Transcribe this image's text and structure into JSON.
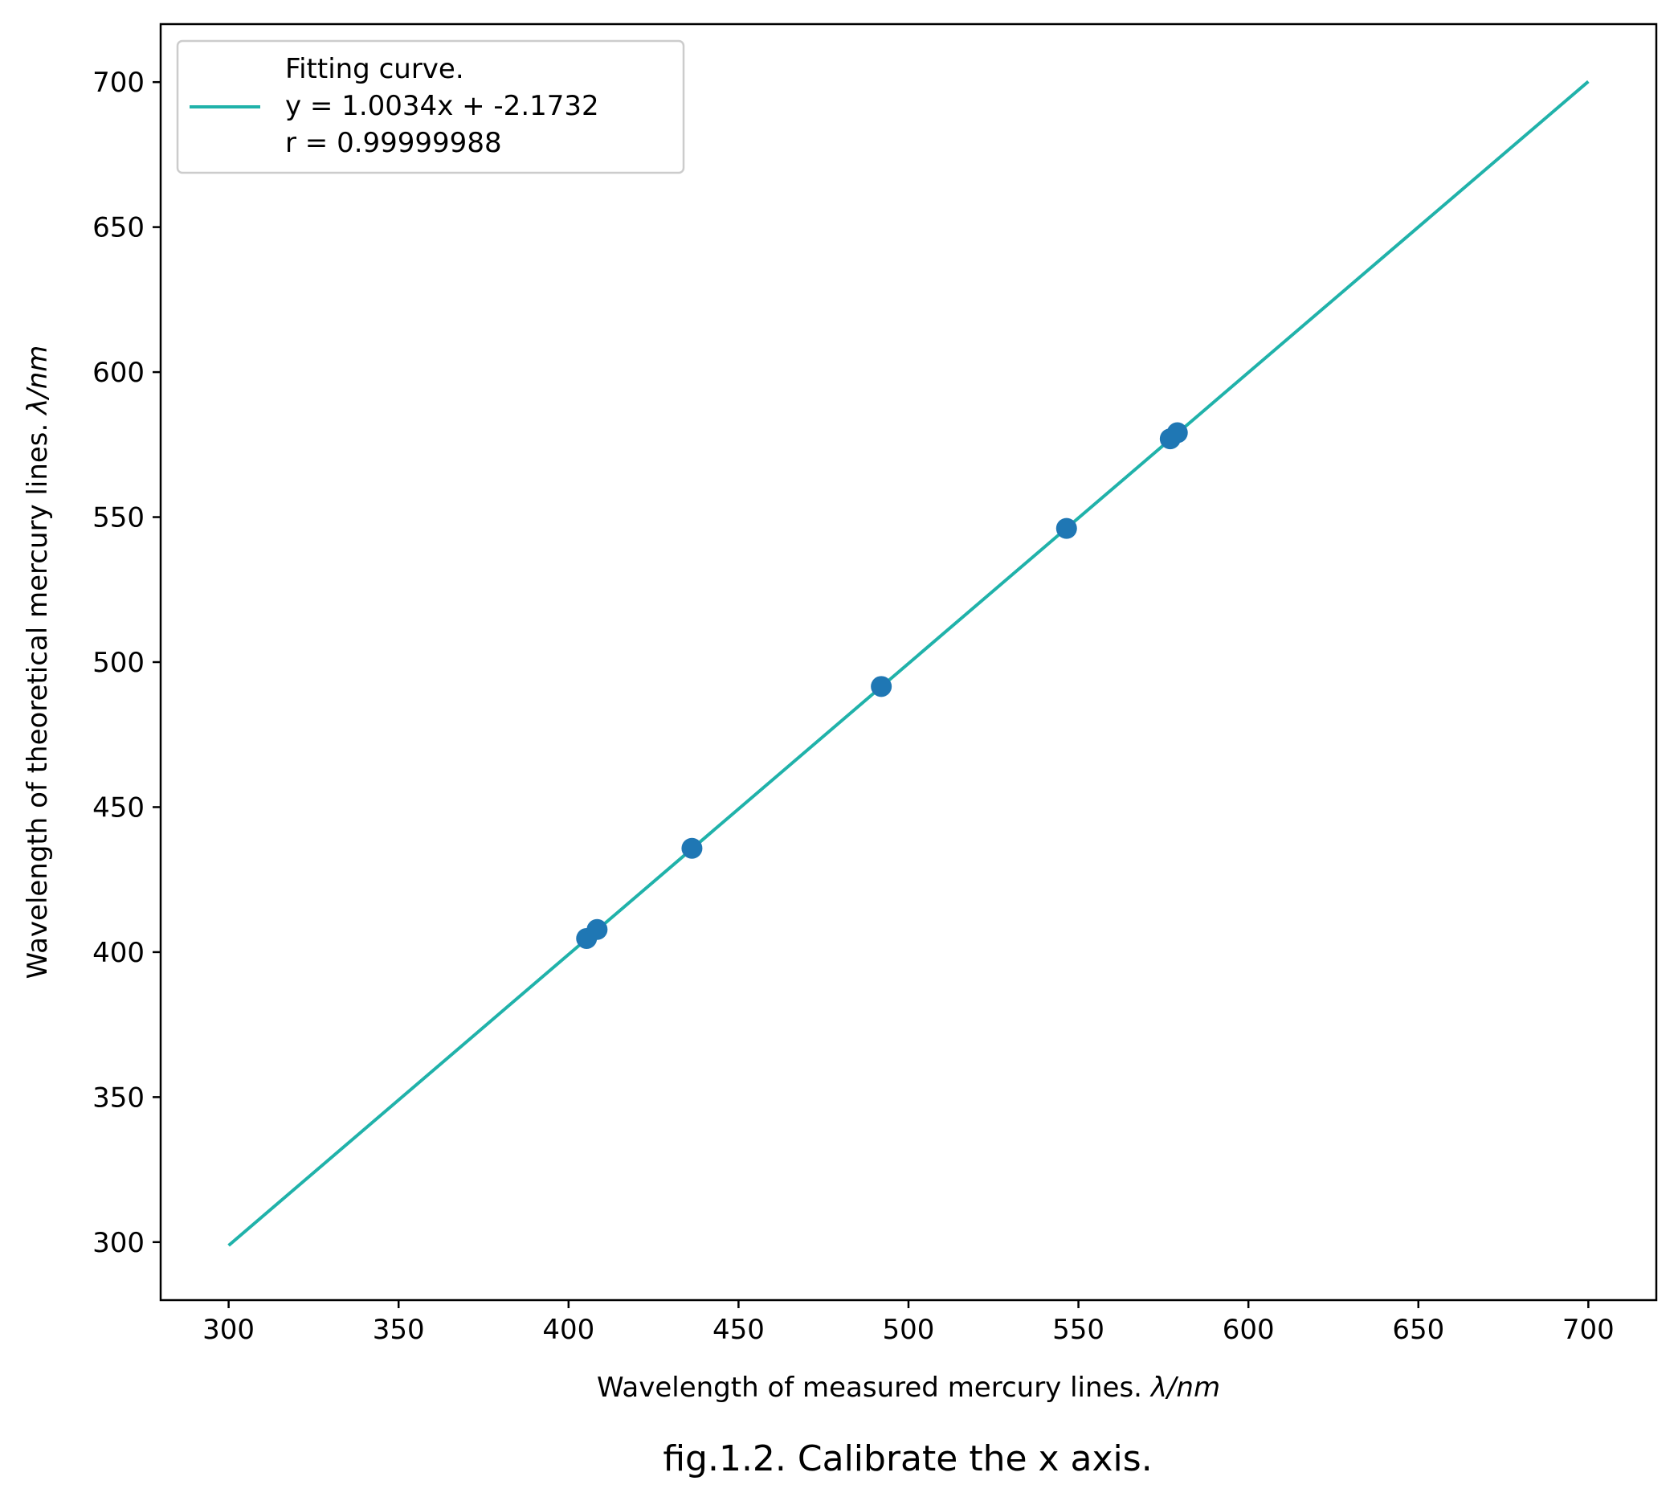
{
  "chart_data": {
    "type": "scatter",
    "caption": "fig.1.2. Calibrate the x axis.",
    "xlabel": {
      "text": "Wavelength of measured mercury lines.",
      "unit": "λ/nm"
    },
    "ylabel": {
      "text": "Wavelength of theoretical mercury lines.",
      "unit": "λ/nm"
    },
    "xlim": [
      280,
      720
    ],
    "ylim": [
      280,
      720
    ],
    "xticks": [
      300,
      350,
      400,
      450,
      500,
      550,
      600,
      650,
      700
    ],
    "yticks": [
      300,
      350,
      400,
      450,
      500,
      550,
      600,
      650,
      700
    ],
    "grid": false,
    "legend": {
      "location": "upper-left",
      "lines": [
        "Fitting curve.",
        "y = 1.0034x + -2.1732",
        "r = 0.99999988"
      ]
    },
    "fit": {
      "slope": 1.0034,
      "intercept": -2.1732,
      "x_range": [
        300,
        700
      ],
      "color": "#20b2aa"
    },
    "points": {
      "color": "#1f77b4",
      "x": [
        405.3,
        408.4,
        436.3,
        492.0,
        546.5,
        577.0,
        579.1
      ],
      "y": [
        404.7,
        407.8,
        435.8,
        491.6,
        546.1,
        577.0,
        579.1
      ]
    }
  }
}
